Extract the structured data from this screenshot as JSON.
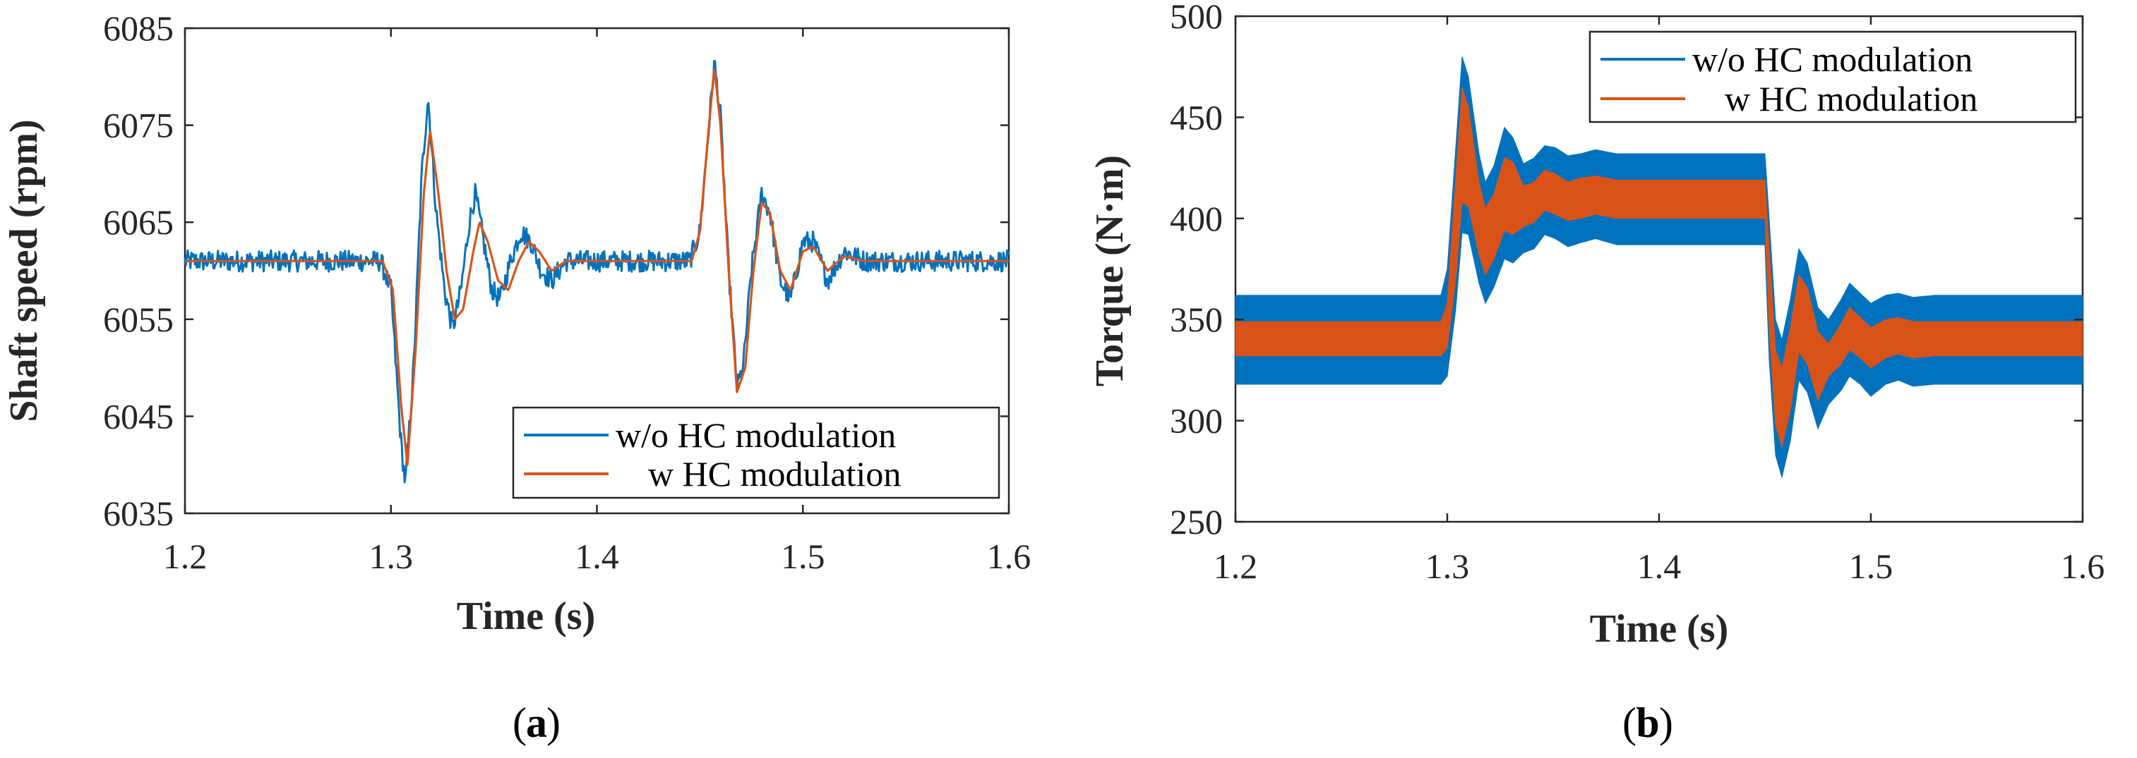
{
  "colors": {
    "without": "#0072BD",
    "with": "#D95319",
    "axis": "#262626"
  },
  "chart_data": [
    {
      "id": "a",
      "type": "line",
      "caption_letter": "a",
      "xlabel": "Time (s)",
      "ylabel": "Shaft speed (rpm)",
      "xlim": [
        1.2,
        1.6
      ],
      "ylim": [
        6035,
        6085
      ],
      "xticks": [
        1.2,
        1.3,
        1.4,
        1.5,
        1.6
      ],
      "xtick_labels": [
        "1.2",
        "1.3",
        "1.4",
        "1.5",
        "1.6"
      ],
      "yticks": [
        6035,
        6045,
        6055,
        6065,
        6075,
        6085
      ],
      "ytick_labels": [
        "6035",
        "6045",
        "6055",
        "6065",
        "6075",
        "6085"
      ],
      "legend_position": "bottom-right",
      "series": [
        {
          "name": "w/o HC modulation",
          "color": "#0072BD",
          "baseline": 6061,
          "noise": 1.1,
          "points": [
            [
              1.2,
              6061
            ],
            [
              1.295,
              6061
            ],
            [
              1.3,
              6058
            ],
            [
              1.305,
              6042
            ],
            [
              1.307,
              6038
            ],
            [
              1.311,
              6050
            ],
            [
              1.315,
              6070
            ],
            [
              1.318,
              6078
            ],
            [
              1.322,
              6066
            ],
            [
              1.326,
              6058
            ],
            [
              1.33,
              6054
            ],
            [
              1.334,
              6058
            ],
            [
              1.338,
              6065
            ],
            [
              1.341,
              6068
            ],
            [
              1.345,
              6063
            ],
            [
              1.349,
              6058
            ],
            [
              1.353,
              6057
            ],
            [
              1.358,
              6061
            ],
            [
              1.363,
              6064
            ],
            [
              1.368,
              6063
            ],
            [
              1.373,
              6060
            ],
            [
              1.378,
              6059
            ],
            [
              1.385,
              6061
            ],
            [
              1.445,
              6061
            ],
            [
              1.45,
              6064
            ],
            [
              1.454,
              6074
            ],
            [
              1.457,
              6081.5
            ],
            [
              1.46,
              6076
            ],
            [
              1.464,
              6060
            ],
            [
              1.468,
              6048
            ],
            [
              1.471,
              6050
            ],
            [
              1.475,
              6060
            ],
            [
              1.48,
              6068
            ],
            [
              1.484,
              6066
            ],
            [
              1.489,
              6059
            ],
            [
              1.494,
              6057
            ],
            [
              1.5,
              6063
            ],
            [
              1.505,
              6063
            ],
            [
              1.512,
              6059
            ],
            [
              1.52,
              6062
            ],
            [
              1.53,
              6061
            ],
            [
              1.6,
              6061
            ]
          ]
        },
        {
          "name": "w HC modulation",
          "color": "#D95319",
          "baseline": 6061,
          "noise": 0,
          "points": [
            [
              1.2,
              6061
            ],
            [
              1.296,
              6061
            ],
            [
              1.301,
              6058
            ],
            [
              1.305,
              6046
            ],
            [
              1.308,
              6040
            ],
            [
              1.312,
              6052
            ],
            [
              1.316,
              6068
            ],
            [
              1.319,
              6074.5
            ],
            [
              1.323,
              6068
            ],
            [
              1.327,
              6060
            ],
            [
              1.331,
              6055
            ],
            [
              1.335,
              6056
            ],
            [
              1.34,
              6062
            ],
            [
              1.343,
              6065
            ],
            [
              1.347,
              6063
            ],
            [
              1.352,
              6059
            ],
            [
              1.357,
              6058
            ],
            [
              1.362,
              6061
            ],
            [
              1.367,
              6063
            ],
            [
              1.372,
              6062
            ],
            [
              1.378,
              6060
            ],
            [
              1.385,
              6061
            ],
            [
              1.446,
              6061
            ],
            [
              1.45,
              6064
            ],
            [
              1.454,
              6074
            ],
            [
              1.457,
              6081
            ],
            [
              1.46,
              6075
            ],
            [
              1.464,
              6060
            ],
            [
              1.468,
              6047.5
            ],
            [
              1.472,
              6050
            ],
            [
              1.476,
              6060
            ],
            [
              1.48,
              6067
            ],
            [
              1.484,
              6066
            ],
            [
              1.489,
              6060
            ],
            [
              1.494,
              6058
            ],
            [
              1.5,
              6062
            ],
            [
              1.505,
              6062.5
            ],
            [
              1.512,
              6060
            ],
            [
              1.52,
              6061.5
            ],
            [
              1.53,
              6061
            ],
            [
              1.6,
              6061
            ]
          ]
        }
      ]
    },
    {
      "id": "b",
      "type": "area",
      "caption_letter": "b",
      "xlabel": "Time (s)",
      "ylabel": "Torque (N·m)",
      "xlim": [
        1.2,
        1.6
      ],
      "ylim": [
        250,
        500
      ],
      "xticks": [
        1.2,
        1.3,
        1.4,
        1.5,
        1.6
      ],
      "xtick_labels": [
        "1.2",
        "1.3",
        "1.4",
        "1.5",
        "1.6"
      ],
      "yticks": [
        250,
        300,
        350,
        400,
        450,
        500
      ],
      "ytick_labels": [
        "250",
        "300",
        "350",
        "400",
        "450",
        "500"
      ],
      "legend_position": "top-right",
      "series": [
        {
          "name": "w/o HC modulation",
          "color": "#0072BD",
          "upper": [
            [
              1.2,
              362
            ],
            [
              1.297,
              362
            ],
            [
              1.3,
              375
            ],
            [
              1.304,
              435
            ],
            [
              1.307,
              480
            ],
            [
              1.31,
              470
            ],
            [
              1.315,
              432
            ],
            [
              1.318,
              418
            ],
            [
              1.322,
              426
            ],
            [
              1.327,
              445
            ],
            [
              1.331,
              440
            ],
            [
              1.336,
              427
            ],
            [
              1.341,
              430
            ],
            [
              1.346,
              436
            ],
            [
              1.351,
              435
            ],
            [
              1.357,
              431
            ],
            [
              1.363,
              432
            ],
            [
              1.37,
              434
            ],
            [
              1.38,
              432
            ],
            [
              1.45,
              432
            ],
            [
              1.452,
              400
            ],
            [
              1.455,
              350
            ],
            [
              1.458,
              340
            ],
            [
              1.462,
              360
            ],
            [
              1.466,
              385
            ],
            [
              1.47,
              378
            ],
            [
              1.475,
              356
            ],
            [
              1.48,
              350
            ],
            [
              1.486,
              360
            ],
            [
              1.49,
              368
            ],
            [
              1.495,
              363
            ],
            [
              1.5,
              358
            ],
            [
              1.507,
              362
            ],
            [
              1.513,
              363
            ],
            [
              1.52,
              361
            ],
            [
              1.53,
              362
            ],
            [
              1.6,
              362
            ]
          ],
          "lower": [
            [
              1.2,
              318
            ],
            [
              1.297,
              318
            ],
            [
              1.3,
              322
            ],
            [
              1.304,
              355
            ],
            [
              1.307,
              393
            ],
            [
              1.31,
              392
            ],
            [
              1.315,
              368
            ],
            [
              1.318,
              358
            ],
            [
              1.322,
              366
            ],
            [
              1.327,
              380
            ],
            [
              1.331,
              378
            ],
            [
              1.336,
              383
            ],
            [
              1.341,
              385
            ],
            [
              1.346,
              392
            ],
            [
              1.351,
              390
            ],
            [
              1.357,
              386
            ],
            [
              1.363,
              388
            ],
            [
              1.37,
              390
            ],
            [
              1.38,
              387
            ],
            [
              1.45,
              387
            ],
            [
              1.452,
              330
            ],
            [
              1.455,
              283
            ],
            [
              1.458,
              272
            ],
            [
              1.462,
              290
            ],
            [
              1.466,
              320
            ],
            [
              1.47,
              314
            ],
            [
              1.475,
              296
            ],
            [
              1.48,
              308
            ],
            [
              1.486,
              315
            ],
            [
              1.49,
              322
            ],
            [
              1.495,
              318
            ],
            [
              1.5,
              312
            ],
            [
              1.507,
              318
            ],
            [
              1.513,
              320
            ],
            [
              1.52,
              317
            ],
            [
              1.53,
              318
            ],
            [
              1.6,
              318
            ]
          ]
        },
        {
          "name": "w HC modulation",
          "color": "#D95319",
          "upper": [
            [
              1.2,
              349
            ],
            [
              1.297,
              349
            ],
            [
              1.3,
              358
            ],
            [
              1.304,
              420
            ],
            [
              1.307,
              465
            ],
            [
              1.31,
              455
            ],
            [
              1.315,
              418
            ],
            [
              1.318,
              405
            ],
            [
              1.322,
              412
            ],
            [
              1.327,
              430
            ],
            [
              1.331,
              428
            ],
            [
              1.336,
              416
            ],
            [
              1.341,
              418
            ],
            [
              1.346,
              424
            ],
            [
              1.351,
              422
            ],
            [
              1.357,
              418
            ],
            [
              1.363,
              420
            ],
            [
              1.37,
              421
            ],
            [
              1.38,
              419
            ],
            [
              1.45,
              419
            ],
            [
              1.452,
              385
            ],
            [
              1.455,
              335
            ],
            [
              1.458,
              326
            ],
            [
              1.462,
              346
            ],
            [
              1.466,
              372
            ],
            [
              1.47,
              366
            ],
            [
              1.475,
              344
            ],
            [
              1.48,
              338
            ],
            [
              1.486,
              348
            ],
            [
              1.49,
              356
            ],
            [
              1.495,
              351
            ],
            [
              1.5,
              346
            ],
            [
              1.507,
              350
            ],
            [
              1.513,
              351
            ],
            [
              1.52,
              349
            ],
            [
              1.53,
              349
            ],
            [
              1.6,
              349
            ]
          ],
          "lower": [
            [
              1.2,
              332
            ],
            [
              1.297,
              332
            ],
            [
              1.3,
              336
            ],
            [
              1.304,
              370
            ],
            [
              1.307,
              408
            ],
            [
              1.31,
              406
            ],
            [
              1.315,
              382
            ],
            [
              1.318,
              372
            ],
            [
              1.322,
              380
            ],
            [
              1.327,
              394
            ],
            [
              1.331,
              392
            ],
            [
              1.336,
              396
            ],
            [
              1.341,
              398
            ],
            [
              1.346,
              404
            ],
            [
              1.351,
              402
            ],
            [
              1.357,
              399
            ],
            [
              1.363,
              400
            ],
            [
              1.37,
              402
            ],
            [
              1.38,
              400
            ],
            [
              1.45,
              400
            ],
            [
              1.452,
              345
            ],
            [
              1.455,
              298
            ],
            [
              1.458,
              287
            ],
            [
              1.462,
              305
            ],
            [
              1.466,
              334
            ],
            [
              1.47,
              328
            ],
            [
              1.475,
              310
            ],
            [
              1.48,
              322
            ],
            [
              1.486,
              328
            ],
            [
              1.49,
              335
            ],
            [
              1.495,
              331
            ],
            [
              1.5,
              326
            ],
            [
              1.507,
              331
            ],
            [
              1.513,
              333
            ],
            [
              1.52,
              331
            ],
            [
              1.53,
              332
            ],
            [
              1.6,
              332
            ]
          ]
        }
      ]
    }
  ]
}
